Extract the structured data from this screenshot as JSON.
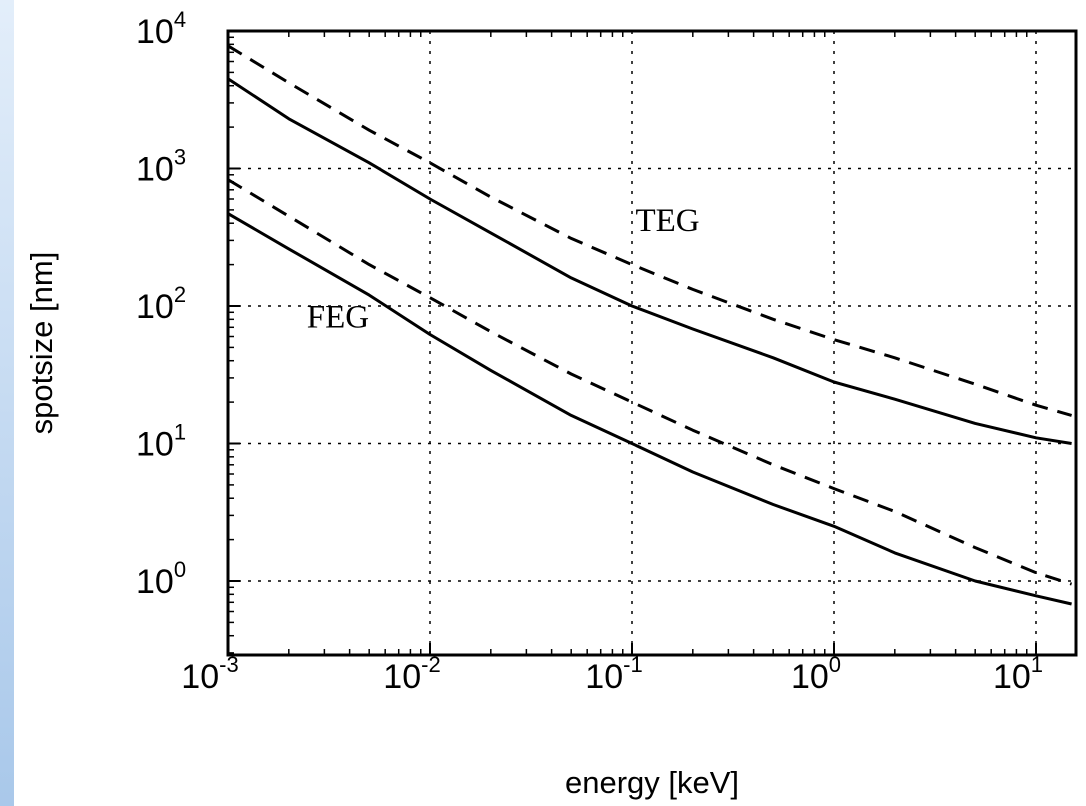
{
  "chart_data": {
    "type": "line",
    "xlabel": "energy [keV]",
    "ylabel": "spotsize [nm]",
    "xscale": "log",
    "yscale": "log",
    "xlim": [
      0.001,
      15
    ],
    "ylim": [
      0.3,
      10000
    ],
    "grid": true,
    "grid_style": "dotted",
    "x_ticks": [
      {
        "value": 0.001,
        "base": "10",
        "exp": "-3"
      },
      {
        "value": 0.01,
        "base": "10",
        "exp": "-2"
      },
      {
        "value": 0.1,
        "base": "10",
        "exp": "-1"
      },
      {
        "value": 1,
        "base": "10",
        "exp": "0"
      },
      {
        "value": 10,
        "base": "10",
        "exp": "1"
      }
    ],
    "y_ticks": [
      {
        "value": 1,
        "base": "10",
        "exp": "0"
      },
      {
        "value": 10,
        "base": "10",
        "exp": "1"
      },
      {
        "value": 100,
        "base": "10",
        "exp": "2"
      },
      {
        "value": 1000,
        "base": "10",
        "exp": "3"
      },
      {
        "value": 10000,
        "base": "10",
        "exp": "4"
      }
    ],
    "annotations": [
      {
        "text": "TEG",
        "x": 0.15,
        "y": 350
      },
      {
        "text": "FEG",
        "x": 0.0035,
        "y": 70
      }
    ],
    "series": [
      {
        "style": "dashed",
        "x": [
          0.001,
          0.002,
          0.005,
          0.01,
          0.02,
          0.05,
          0.1,
          0.2,
          0.5,
          1,
          2,
          5,
          10,
          15
        ],
        "y": [
          7800,
          4200,
          1900,
          1100,
          620,
          310,
          200,
          132,
          80,
          57,
          42,
          27,
          19,
          16
        ]
      },
      {
        "style": "solid",
        "x": [
          0.001,
          0.002,
          0.005,
          0.01,
          0.02,
          0.05,
          0.1,
          0.2,
          0.5,
          1,
          2,
          5,
          10,
          15
        ],
        "y": [
          4500,
          2300,
          1100,
          600,
          340,
          160,
          100,
          68,
          42,
          28,
          21,
          14,
          11,
          10
        ]
      },
      {
        "style": "dashed",
        "x": [
          0.001,
          0.002,
          0.005,
          0.01,
          0.02,
          0.05,
          0.1,
          0.2,
          0.5,
          1,
          2,
          5,
          10,
          15
        ],
        "y": [
          830,
          450,
          200,
          115,
          65,
          32,
          20,
          12.5,
          7,
          4.7,
          3.2,
          1.75,
          1.15,
          0.95
        ]
      },
      {
        "style": "solid",
        "x": [
          0.001,
          0.002,
          0.005,
          0.01,
          0.02,
          0.05,
          0.1,
          0.2,
          0.5,
          1,
          2,
          5,
          10,
          15
        ],
        "y": [
          470,
          260,
          120,
          62,
          34,
          16,
          10,
          6.2,
          3.6,
          2.5,
          1.6,
          1.0,
          0.78,
          0.68
        ]
      }
    ]
  }
}
